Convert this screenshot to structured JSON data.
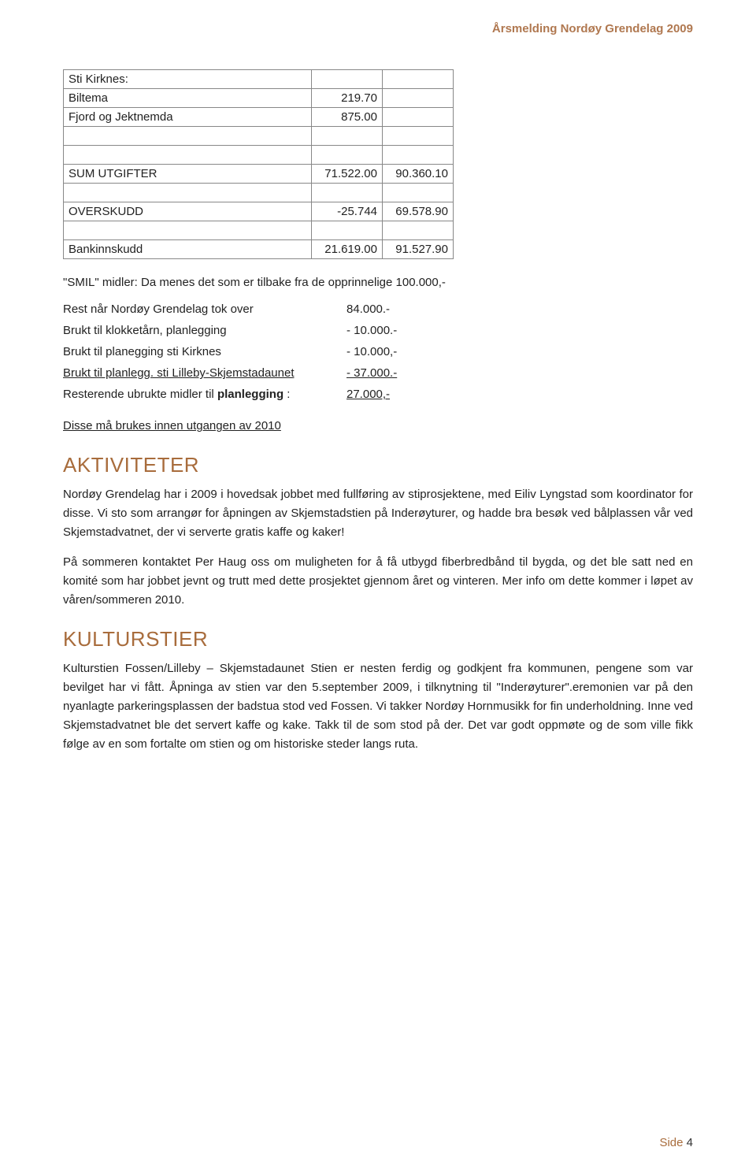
{
  "header": {
    "title": "Årsmelding Nordøy Grendelag 2009"
  },
  "table": {
    "rows": [
      {
        "label": "Sti Kirknes:",
        "c1": "",
        "c2": ""
      },
      {
        "label": "Biltema",
        "c1": "219.70",
        "c2": ""
      },
      {
        "label": "Fjord og Jektnemda",
        "c1": "875.00",
        "c2": ""
      },
      {
        "spacer": true
      },
      {
        "spacer": true
      },
      {
        "label": "SUM UTGIFTER",
        "c1": "71.522.00",
        "c2": "90.360.10"
      },
      {
        "spacer": true
      },
      {
        "label": "OVERSKUDD",
        "c1": "-25.744",
        "c2": "69.578.90"
      },
      {
        "spacer": true
      },
      {
        "label": "Bankinnskudd",
        "c1": "21.619.00",
        "c2": "91.527.90"
      }
    ]
  },
  "smil_intro": "\"SMIL\" midler: Da menes det som er tilbake fra de opprinnelige 100.000,-",
  "allocations": [
    {
      "label": "Rest når Nordøy Grendelag tok over",
      "value": "84.000.-"
    },
    {
      "label": "Brukt til klokketårn, planlegging",
      "value": "- 10.000.-"
    },
    {
      "label": "Brukt til planegging sti Kirknes",
      "value": "- 10.000,-"
    },
    {
      "label": "Brukt til planlegg. sti Lilleby-Skjemstadaunet",
      "value": "- 37.000.-",
      "underline": true
    },
    {
      "label_prefix": "Resterende ubrukte midler til ",
      "label_bold": "planlegging",
      "label_suffix": " :",
      "value": "27.000,-",
      "value_underline": true
    }
  ],
  "alloc_note": "Disse må brukes innen utgangen av 2010",
  "sections": {
    "aktiviteter": {
      "title": "AKTIVITETER",
      "p1": "Nordøy Grendelag har i 2009 i hovedsak jobbet med fullføring av stiprosjektene, med Eiliv Lyngstad som koordinator for disse. Vi sto som arrangør for åpningen av Skjemstadstien på Inderøyturer, og hadde bra besøk ved bålplassen vår ved Skjemstadvatnet, der vi serverte gratis kaffe og kaker!",
      "p2": "På sommeren kontaktet Per Haug oss om muligheten for å få utbygd fiberbredbånd til bygda, og det ble satt ned en komité som har jobbet jevnt og trutt med dette prosjektet gjennom året og vinteren. Mer info om dette kommer i løpet av våren/sommeren 2010."
    },
    "kulturstier": {
      "title": "KULTURSTIER",
      "p1": "Kulturstien Fossen/Lilleby – Skjemstadaunet Stien er nesten ferdig og godkjent fra kommunen, pengene som var bevilget har vi fått. Åpninga av stien var den 5.september 2009, i tilknytning til \"Inderøyturer\".eremonien var på den nyanlagte parkeringsplassen der badstua stod ved Fossen. Vi takker Nordøy Hornmusikk for fin underholdning. Inne ved Skjemstadvatnet ble det servert kaffe og kake. Takk til de som stod på der. Det var godt oppmøte og de som ville fikk følge av en som fortalte om stien og om historiske steder langs ruta."
    }
  },
  "footer": {
    "label": "Side",
    "num": "4"
  }
}
